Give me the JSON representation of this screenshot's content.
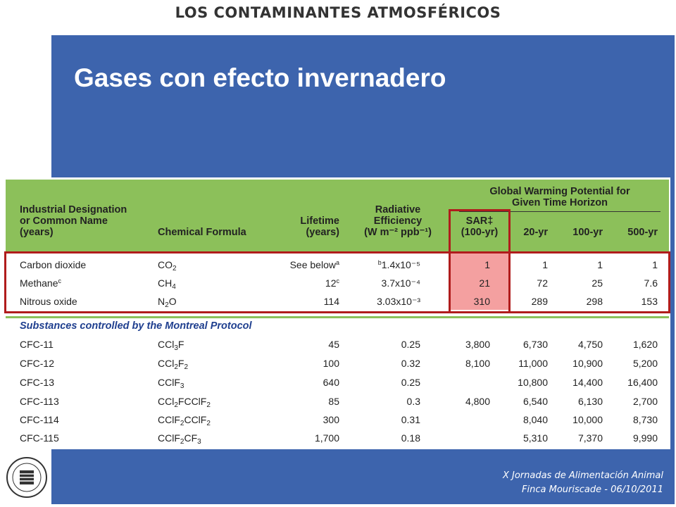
{
  "header": {
    "top_title": "LOS CONTAMINANTES ATMOSFÉRICOS",
    "slide_title": "Gases con efecto invernadero"
  },
  "table": {
    "headers": {
      "designation": [
        "Industrial Designation",
        "or Common Name",
        "(years)"
      ],
      "formula": "Chemical Formula",
      "lifetime": [
        "Lifetime",
        "(years)"
      ],
      "efficiency": [
        "Radiative",
        "Efficiency",
        "(W m⁻² ppb⁻¹)"
      ],
      "gwp_group": [
        "Global Warming Potential for",
        "Given Time Horizon"
      ],
      "sar": [
        "SAR‡",
        "(100-yr)"
      ],
      "yr20": "20-yr",
      "yr100": "100-yr",
      "yr500": "500-yr"
    },
    "highlighted_rows": [
      {
        "name": "Carbon dioxide",
        "lifetime": "See below",
        "lifetime_sup": "a",
        "eff_sup": "b",
        "efficiency": "1.4x10⁻⁵",
        "sar": "1",
        "yr20": "1",
        "yr100": "1",
        "yr500": "1"
      },
      {
        "name": "Methane",
        "name_sup": "c",
        "lifetime": "12",
        "lifetime_sup": "c",
        "efficiency": "3.7x10⁻⁴",
        "sar": "21",
        "yr20": "72",
        "yr100": "25",
        "yr500": "7.6"
      },
      {
        "name": "Nitrous oxide",
        "lifetime": "114",
        "efficiency": "3.03x10⁻³",
        "sar": "310",
        "yr20": "289",
        "yr100": "298",
        "yr500": "153"
      }
    ],
    "section_title": "Substances controlled by the Montreal Protocol",
    "montreal_rows": [
      {
        "name": "CFC-11",
        "lifetime": "45",
        "efficiency": "0.25",
        "sar": "3,800",
        "yr20": "6,730",
        "yr100": "4,750",
        "yr500": "1,620"
      },
      {
        "name": "CFC-12",
        "lifetime": "100",
        "efficiency": "0.32",
        "sar": "8,100",
        "yr20": "11,000",
        "yr100": "10,900",
        "yr500": "5,200"
      },
      {
        "name": "CFC-13",
        "lifetime": "640",
        "efficiency": "0.25",
        "sar": "",
        "yr20": "10,800",
        "yr100": "14,400",
        "yr500": "16,400"
      },
      {
        "name": "CFC-113",
        "lifetime": "85",
        "efficiency": "0.3",
        "sar": "4,800",
        "yr20": "6,540",
        "yr100": "6,130",
        "yr500": "2,700"
      },
      {
        "name": "CFC-114",
        "lifetime": "300",
        "efficiency": "0.31",
        "sar": "",
        "yr20": "8,040",
        "yr100": "10,000",
        "yr500": "8,730"
      },
      {
        "name": "CFC-115",
        "lifetime": "1,700",
        "efficiency": "0.18",
        "sar": "",
        "yr20": "5,310",
        "yr100": "7,370",
        "yr500": "9,990"
      }
    ]
  },
  "footer": {
    "line1": "X Jornadas de Alimentación Animal",
    "line2": "Finca Mouriscade  -  06/10/2011"
  },
  "colors": {
    "panel": "#3d64ad",
    "header_band": "#8cc05a",
    "highlight_box": "#b01c1c",
    "sar_fill": "#f4a0a0"
  }
}
